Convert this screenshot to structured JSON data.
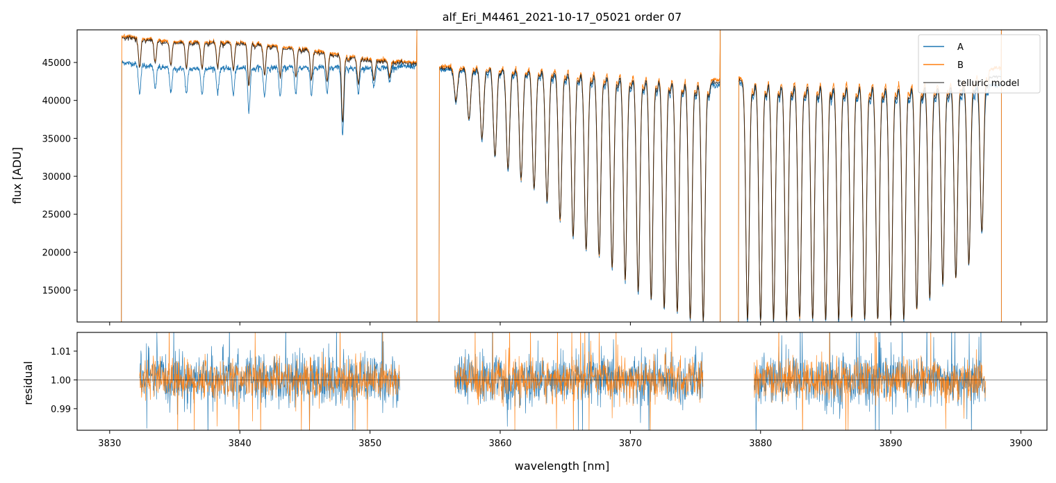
{
  "chart_data": [
    {
      "type": "line",
      "title": "alf_Eri_M4461_2021-10-17_05021  order 07",
      "xlabel": "",
      "ylabel": "flux [ADU]",
      "xlim": [
        3827.5,
        3902.0
      ],
      "ylim": [
        10800,
        49300
      ],
      "yticks": [
        15000,
        20000,
        25000,
        30000,
        35000,
        40000,
        45000
      ],
      "ytick_labels": [
        "15000",
        "20000",
        "25000",
        "30000",
        "35000",
        "40000",
        "45000"
      ],
      "xticks": [
        3830,
        3840,
        3850,
        3860,
        3870,
        3880,
        3890,
        3900
      ],
      "legend": {
        "position": "top-right",
        "entries": [
          {
            "label": "A",
            "color": "#1f77b4"
          },
          {
            "label": "B",
            "color": "#ff7f0e"
          },
          {
            "label": "telluric model",
            "color": "#000000"
          }
        ]
      },
      "segments": [
        {
          "x_range": [
            3830.9,
            3853.6
          ],
          "note": "first band, continuum A ~44000-45000, B ~47000-48000"
        },
        {
          "x_range": [
            3855.3,
            3876.9
          ],
          "note": "deep telluric absorption series, minima deepening from ~39000 to below 11000"
        },
        {
          "x_range": [
            3878.3,
            3898.5
          ],
          "note": "regular telluric lines, continuum ~42000, minima below 11000"
        }
      ],
      "series": [
        {
          "name": "A",
          "color": "#1f77b4",
          "continuum": [
            [
              3831.0,
              45000
            ],
            [
              3835.0,
              44200
            ],
            [
              3840.0,
              44300
            ],
            [
              3845.0,
              44400
            ],
            [
              3850.0,
              44300
            ],
            [
              3853.5,
              44500
            ],
            [
              3855.5,
              44000
            ],
            [
              3860.0,
              44000
            ],
            [
              3865.0,
              43500
            ],
            [
              3870.0,
              42800
            ],
            [
              3876.5,
              42000
            ],
            [
              3878.5,
              42200
            ],
            [
              3885.0,
              41700
            ],
            [
              3890.0,
              41600
            ],
            [
              3895.0,
              41500
            ],
            [
              3898.0,
              42000
            ]
          ]
        },
        {
          "name": "B",
          "color": "#ff7f0e",
          "continuum": [
            [
              3831.0,
              48500
            ],
            [
              3835.0,
              47800
            ],
            [
              3840.0,
              47700
            ],
            [
              3845.0,
              46800
            ],
            [
              3850.0,
              45400
            ],
            [
              3853.5,
              45000
            ],
            [
              3855.5,
              44200
            ],
            [
              3860.0,
              44200
            ],
            [
              3865.0,
              43900
            ],
            [
              3870.0,
              43300
            ],
            [
              3876.5,
              42400
            ],
            [
              3878.5,
              42600
            ],
            [
              3885.0,
              42300
            ],
            [
              3890.0,
              42200
            ],
            [
              3895.0,
              42300
            ],
            [
              3898.0,
              44000
            ]
          ]
        },
        {
          "name": "telluric model",
          "color": "#000000",
          "continuum": "follows B in first band, average of A/B elsewhere"
        }
      ],
      "absorption_lines": {
        "band1": {
          "x": [
            3832.3,
            3833.5,
            3834.7,
            3835.9,
            3837.1,
            3838.3,
            3839.5,
            3840.7,
            3841.9,
            3843.1,
            3844.3,
            3845.5,
            3846.7,
            3847.9,
            3849.1,
            3850.3,
            3851.5
          ],
          "depth_A": [
            3800,
            3000,
            3200,
            3400,
            3500,
            3300,
            3600,
            5600,
            3800,
            3900,
            3600,
            3700,
            3600,
            8800,
            3400,
            2600,
            2000
          ]
        },
        "band2": {
          "x": [
            3856.6,
            3857.6,
            3858.6,
            3859.6,
            3860.6,
            3861.6,
            3862.6,
            3863.6,
            3864.6,
            3865.6,
            3866.6,
            3867.6,
            3868.6,
            3869.6,
            3870.6,
            3871.6,
            3872.6,
            3873.6,
            3874.6,
            3875.6
          ],
          "minimum": [
            39800,
            37300,
            34800,
            32500,
            30800,
            29400,
            28200,
            26500,
            24100,
            21800,
            20200,
            19200,
            17800,
            16200,
            14700,
            13600,
            12500,
            11800,
            10900,
            10900
          ]
        },
        "band3": {
          "x": [
            3879.0,
            3880.0,
            3881.0,
            3882.0,
            3883.0,
            3884.0,
            3885.0,
            3886.0,
            3887.0,
            3888.0,
            3889.0,
            3890.0,
            3891.0,
            3892.0,
            3893.0,
            3894.0,
            3895.0,
            3896.0,
            3897.0
          ],
          "minimum": [
            10900,
            10900,
            10900,
            10900,
            10900,
            10900,
            10900,
            10900,
            10900,
            10900,
            10900,
            10900,
            10900,
            12200,
            13800,
            15800,
            16500,
            18200,
            22500
          ]
        }
      }
    },
    {
      "type": "line",
      "title": "",
      "xlabel": "wavelength [nm]",
      "ylabel": "residual",
      "xlim": [
        3827.5,
        3902.0
      ],
      "ylim": [
        0.9825,
        1.0165
      ],
      "yticks": [
        0.99,
        1.0,
        1.01
      ],
      "ytick_labels": [
        "0.99",
        "1.00",
        "1.01"
      ],
      "xticks": [
        3830,
        3840,
        3850,
        3860,
        3870,
        3880,
        3890,
        3900
      ],
      "xtick_labels": [
        "3830",
        "3840",
        "3850",
        "3860",
        "3870",
        "3880",
        "3890",
        "3900"
      ],
      "reference_line": 1.0,
      "segments": [
        [
          3832.3,
          3852.3
        ],
        [
          3856.5,
          3875.6
        ],
        [
          3879.5,
          3897.3
        ]
      ],
      "series": [
        {
          "name": "A",
          "color": "#1f77b4",
          "noise_std": 0.0045
        },
        {
          "name": "B",
          "color": "#ff7f0e",
          "noise_std": 0.0035
        }
      ]
    }
  ]
}
